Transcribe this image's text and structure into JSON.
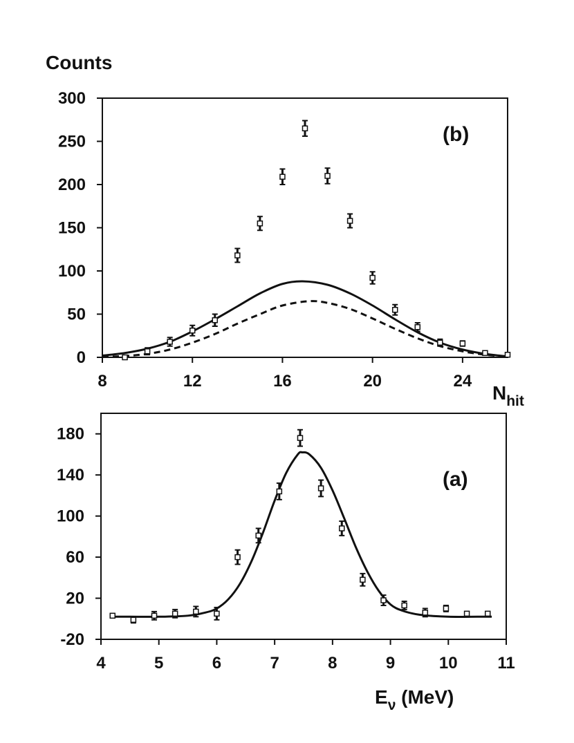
{
  "chart_data": [
    {
      "type": "scatter",
      "panel_label": "(b)",
      "ylabel": "Counts",
      "xlabel": "N",
      "xlabel_sub": "hit",
      "xlim": [
        8,
        26
      ],
      "ylim": [
        0,
        300
      ],
      "xticks": [
        8,
        12,
        16,
        20,
        24
      ],
      "yticks": [
        0,
        50,
        100,
        150,
        200,
        250,
        300
      ],
      "grid": false,
      "series": [
        {
          "style": "points-with-errorbars",
          "x": [
            9,
            10,
            11,
            12,
            13,
            14,
            15,
            16,
            17,
            18,
            19,
            20,
            21,
            22,
            23,
            24,
            25,
            26
          ],
          "y": [
            0,
            7,
            18,
            31,
            43,
            118,
            155,
            209,
            265,
            210,
            158,
            92,
            55,
            35,
            17,
            16,
            5,
            3
          ],
          "err": [
            2,
            4,
            5,
            6,
            7,
            8,
            8,
            9,
            9,
            9,
            8,
            7,
            6,
            5,
            4,
            3,
            2,
            2
          ]
        },
        {
          "style": "solid-curve",
          "x": [
            8,
            9,
            10,
            11,
            12,
            13,
            14,
            15,
            16,
            16.9,
            18,
            19,
            20,
            21,
            22,
            23,
            24,
            25,
            26
          ],
          "y": [
            2,
            5,
            10,
            18,
            30,
            44,
            59,
            74,
            85,
            88,
            84,
            74,
            60,
            44,
            29,
            17,
            9,
            4,
            1
          ]
        },
        {
          "style": "dashed-curve",
          "x": [
            8,
            9,
            10,
            11,
            12,
            13,
            14,
            15,
            16,
            17.2,
            18,
            19,
            20,
            21,
            22,
            23,
            24,
            25,
            26
          ],
          "y": [
            0.5,
            1.5,
            4,
            9,
            17,
            27,
            39,
            50,
            60,
            65,
            63,
            56,
            45,
            33,
            22,
            13,
            7,
            3,
            1
          ]
        }
      ]
    },
    {
      "type": "scatter",
      "panel_label": "(a)",
      "xlabel": "E",
      "xlabel_sub": "ν",
      "xlabel_unit": " (MeV)",
      "xlim": [
        4,
        11
      ],
      "ylim": [
        -20,
        200
      ],
      "xticks": [
        4,
        5,
        6,
        7,
        8,
        9,
        10,
        11
      ],
      "yticks": [
        -20,
        20,
        60,
        100,
        140,
        180
      ],
      "grid": false,
      "series": [
        {
          "style": "points-with-errorbars",
          "x": [
            4.2,
            4.56,
            4.92,
            5.28,
            5.64,
            6.0,
            6.36,
            6.72,
            7.08,
            7.44,
            7.8,
            8.16,
            8.52,
            8.88,
            9.24,
            9.6,
            9.96,
            10.32,
            10.68
          ],
          "y": [
            3,
            -1,
            3,
            5,
            7,
            5,
            60,
            81,
            124,
            176,
            127,
            88,
            38,
            18,
            13,
            6,
            10,
            5,
            5
          ],
          "err": [
            2,
            3,
            4,
            4,
            5,
            6,
            7,
            7,
            8,
            8,
            8,
            7,
            6,
            5,
            4,
            4,
            3,
            2,
            2
          ]
        },
        {
          "style": "solid-curve",
          "x": [
            4.2,
            4.5,
            5.0,
            5.5,
            5.8,
            6.0,
            6.2,
            6.4,
            6.6,
            6.8,
            7.0,
            7.2,
            7.4,
            7.48,
            7.6,
            7.8,
            8.0,
            8.2,
            8.4,
            8.6,
            8.8,
            9.0,
            9.2,
            9.5,
            10.0,
            10.5,
            10.75
          ],
          "y": [
            2,
            2,
            2,
            3,
            6,
            10,
            19,
            34,
            56,
            84,
            115,
            142,
            160,
            162,
            160,
            147,
            125,
            98,
            70,
            46,
            27,
            14,
            8,
            4,
            2,
            2,
            2
          ]
        }
      ]
    }
  ]
}
